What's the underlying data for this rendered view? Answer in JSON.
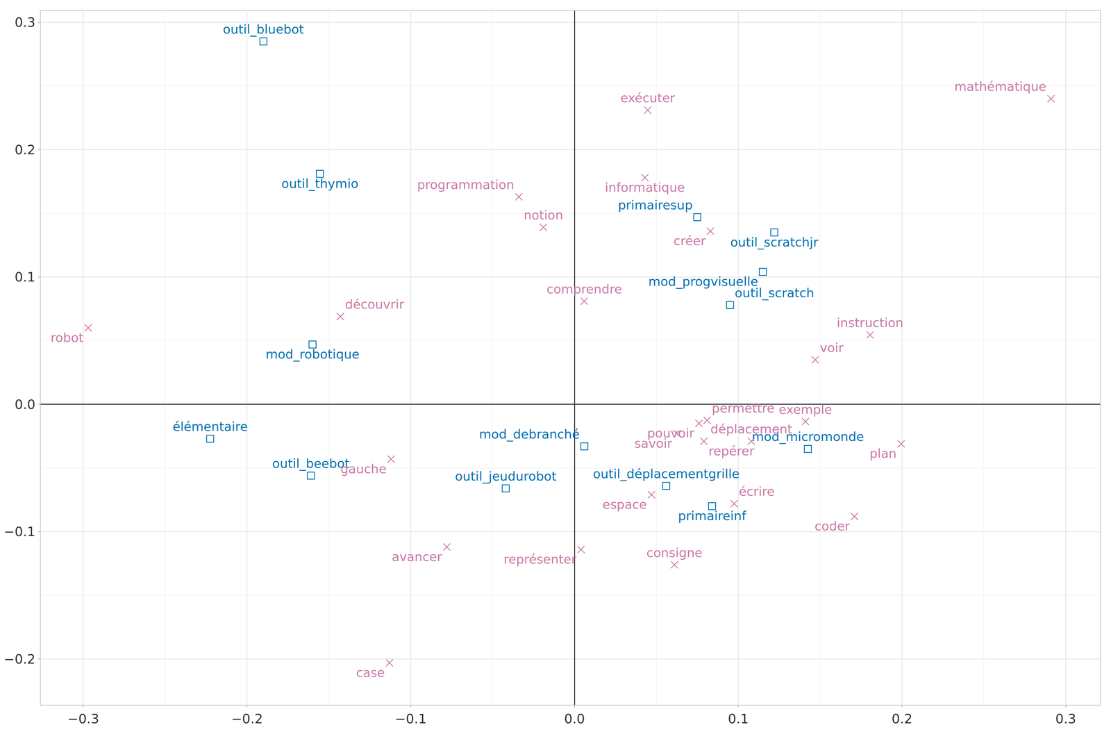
{
  "chart_data": {
    "type": "scatter",
    "grid": true,
    "xlim": [
      -0.326,
      0.321
    ],
    "ylim": [
      -0.236,
      0.309
    ],
    "xticks": [
      {
        "value": -0.3,
        "label": "−0.3"
      },
      {
        "value": -0.2,
        "label": "−0.2"
      },
      {
        "value": -0.1,
        "label": "−0.1"
      },
      {
        "value": 0,
        "label": "0.0"
      },
      0.1,
      0.2,
      0.3
    ],
    "yticks": [
      {
        "value": -0.2,
        "label": "−0.2"
      },
      {
        "value": -0.1,
        "label": "−0.1"
      },
      {
        "value": 0,
        "label": "0.0"
      },
      0.1,
      0.2,
      0.3
    ],
    "series": [
      {
        "color": "#0072B2",
        "marker": "square-open",
        "labels": [
          "outil_bluebot",
          "outil_thymio",
          "primairesup",
          "outil_scratchjr",
          "mod_progvisuelle",
          "outil_scratch",
          "mod_robotique",
          "élémentaire",
          "outil_beebot",
          "outil_jeudurobot",
          "mod_debranché",
          "outil_déplacementgrille",
          "primaireinf",
          "mod_micromonde"
        ],
        "x": [
          -0.19,
          -0.1555,
          0.075,
          0.122,
          0.115,
          0.095,
          -0.16,
          -0.2225,
          -0.161,
          -0.042,
          0.006,
          0.056,
          0.084,
          0.1425
        ],
        "y": [
          0.285,
          0.181,
          0.147,
          0.135,
          0.104,
          0.078,
          0.047,
          -0.027,
          -0.056,
          -0.066,
          -0.033,
          -0.064,
          -0.08,
          -0.035
        ]
      },
      {
        "color": "#CC79A7",
        "marker": "x-thin-open",
        "labels": [
          "mathématique",
          "exécuter",
          "informatique",
          "programmation",
          "notion",
          "créer",
          "comprendre",
          "découvrir",
          "robot",
          "instruction",
          "voir",
          "permettre",
          "pouvoir",
          "savoir",
          "repérer",
          "déplacement",
          "exemple",
          "plan",
          "gauche",
          "espace",
          "écrire",
          "coder",
          "avancer",
          "représenter",
          "consigne",
          "case"
        ],
        "x": [
          0.291,
          0.0447,
          0.043,
          -0.034,
          -0.019,
          0.083,
          0.006,
          -0.143,
          -0.297,
          0.1805,
          0.147,
          0.081,
          0.076,
          0.0625,
          0.079,
          0.108,
          0.141,
          0.1995,
          -0.112,
          0.047,
          0.0975,
          0.171,
          -0.078,
          0.004,
          0.061,
          -0.113
        ],
        "y": [
          0.24,
          0.231,
          0.178,
          0.163,
          0.139,
          0.136,
          0.081,
          0.069,
          0.06,
          0.0545,
          0.035,
          -0.0125,
          -0.015,
          -0.023,
          -0.029,
          -0.029,
          -0.0135,
          -0.031,
          -0.043,
          -0.071,
          -0.078,
          -0.088,
          -0.112,
          -0.114,
          -0.126,
          -0.203
        ]
      }
    ]
  }
}
